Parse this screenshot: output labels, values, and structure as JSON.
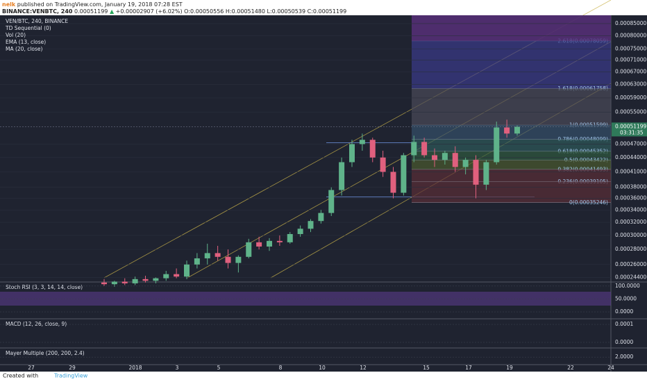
{
  "header": {
    "author": "nelk",
    "published": "published on TradingView.com, January 19, 2018 07:28 EST",
    "symbol": "BINANCE:VENBTC, 240",
    "last": "0.00051199",
    "change": "+0.00002907 (+6.02%)",
    "ohlc": [
      "O:0.00050556",
      "H:0.00051480",
      "L:0.00050539",
      "C:0.00051199"
    ]
  },
  "legend": [
    "VEN/BTC, 240, BINANCE",
    "TD Sequential (0)",
    "Vol (20)",
    "EMA (13, close)",
    "MA (20, close)"
  ],
  "chart_data": {
    "type": "candlestick",
    "log_scale": true,
    "up_color": "#5fb38a",
    "down_color": "#e0607e",
    "ylim": [
      0.0002394,
      0.0008855
    ],
    "yticks": [
      {
        "value": 0.00085,
        "label": "0.00085000"
      },
      {
        "value": 0.0008,
        "label": "0.00080000"
      },
      {
        "value": 0.00075,
        "label": "0.00075000"
      },
      {
        "value": 0.00071,
        "label": "0.00071000"
      },
      {
        "value": 0.00067,
        "label": "0.00067000"
      },
      {
        "value": 0.00063,
        "label": "0.00063000"
      },
      {
        "value": 0.00059,
        "label": "0.00059000"
      },
      {
        "value": 0.00055,
        "label": "0.00055000"
      },
      {
        "value": 0.00047,
        "label": "0.00047000"
      },
      {
        "value": 0.00044,
        "label": "0.00044000"
      },
      {
        "value": 0.00041,
        "label": "0.00041000"
      },
      {
        "value": 0.00038,
        "label": "0.00038000"
      },
      {
        "value": 0.00036,
        "label": "0.00036000"
      },
      {
        "value": 0.00034,
        "label": "0.00034000"
      },
      {
        "value": 0.00032,
        "label": "0.00032000"
      },
      {
        "value": 0.0003,
        "label": "0.00030000"
      },
      {
        "value": 0.00028,
        "label": "0.00028000"
      },
      {
        "value": 0.00026,
        "label": "0.00026000"
      },
      {
        "value": 0.000244,
        "label": "0.00024400"
      }
    ],
    "current": {
      "value": 0.00051199,
      "label": "0.00051199"
    },
    "countdown": "03:31:35",
    "candles": [
      [
        0.000238,
        0.000242,
        0.000234,
        0.000236
      ],
      [
        0.000236,
        0.00024,
        0.000233,
        0.000239
      ],
      [
        0.000239,
        0.000243,
        0.000235,
        0.000237
      ],
      [
        0.000237,
        0.000245,
        0.000235,
        0.000242
      ],
      [
        0.000242,
        0.000246,
        0.000238,
        0.00024
      ],
      [
        0.00024,
        0.000244,
        0.000237,
        0.000243
      ],
      [
        0.000243,
        0.000252,
        0.00024,
        0.000248
      ],
      [
        0.000248,
        0.000255,
        0.000243,
        0.000245
      ],
      [
        0.000245,
        0.000265,
        0.000242,
        0.00026
      ],
      [
        0.00026,
        0.000275,
        0.000255,
        0.000268
      ],
      [
        0.000268,
        0.000288,
        0.00026,
        0.000275
      ],
      [
        0.000275,
        0.000285,
        0.000265,
        0.00027
      ],
      [
        0.00027,
        0.00028,
        0.000255,
        0.000262
      ],
      [
        0.000262,
        0.000272,
        0.00025,
        0.00027
      ],
      [
        0.00027,
        0.000295,
        0.000268,
        0.00029
      ],
      [
        0.00029,
        0.000298,
        0.00028,
        0.000284
      ],
      [
        0.000284,
        0.000296,
        0.000278,
        0.000292
      ],
      [
        0.000292,
        0.0003,
        0.000285,
        0.00029
      ],
      [
        0.00029,
        0.000305,
        0.000288,
        0.000302
      ],
      [
        0.000302,
        0.000315,
        0.000298,
        0.00031
      ],
      [
        0.00031,
        0.000325,
        0.000305,
        0.000322
      ],
      [
        0.000322,
        0.00034,
        0.000318,
        0.000335
      ],
      [
        0.000335,
        0.00038,
        0.00033,
        0.000375
      ],
      [
        0.000375,
        0.00044,
        0.000365,
        0.00043
      ],
      [
        0.00043,
        0.00048,
        0.00042,
        0.00047
      ],
      [
        0.00047,
        0.000495,
        0.000455,
        0.00048
      ],
      [
        0.00048,
        0.000485,
        0.00043,
        0.00044
      ],
      [
        0.00044,
        0.000455,
        0.0004,
        0.00041
      ],
      [
        0.00041,
        0.00042,
        0.00036,
        0.00037
      ],
      [
        0.00037,
        0.00045,
        0.000365,
        0.000445
      ],
      [
        0.000445,
        0.00049,
        0.00043,
        0.000475
      ],
      [
        0.000475,
        0.000485,
        0.00044,
        0.000445
      ],
      [
        0.000445,
        0.00046,
        0.00042,
        0.000435
      ],
      [
        0.000435,
        0.000455,
        0.000425,
        0.00045
      ],
      [
        0.00045,
        0.000465,
        0.00041,
        0.00042
      ],
      [
        0.00042,
        0.00044,
        0.000405,
        0.000435
      ],
      [
        0.000435,
        0.000445,
        0.00036,
        0.000385
      ],
      [
        0.000385,
        0.000435,
        0.000375,
        0.00043
      ],
      [
        0.00043,
        0.000525,
        0.000425,
        0.00051
      ],
      [
        0.00051,
        0.00053,
        0.000485,
        0.000495
      ],
      [
        0.000495,
        0.000515,
        0.00049,
        0.000512
      ]
    ],
    "fib": [
      {
        "value": 0.00078059,
        "label": "2.618(0.00078059)",
        "color": "#7a2e3c"
      },
      {
        "value": 0.00061758,
        "label": "1.618(0.00061758)",
        "color": "#3a3a8a"
      },
      {
        "value": 0.00051599,
        "label": "1(0.00051599)",
        "color": "#4a4a58"
      },
      {
        "value": 0.00048099,
        "label": "0.786(0.00048099)",
        "color": "#34506a"
      },
      {
        "value": 0.00045352,
        "label": "0.618(0.00045352)",
        "color": "#2e5a5a"
      },
      {
        "value": 0.00043422,
        "label": "0.5(0.00043422)",
        "color": "#2f5a3e"
      },
      {
        "value": 0.00041493,
        "label": "0.382(0.00041493)",
        "color": "#4a5a2e"
      },
      {
        "value": 0.00039105,
        "label": "0.236(0.00039105)",
        "color": "#5a2e36"
      },
      {
        "value": 0.00035246,
        "label": "0(0.00035246)",
        "color": "#5a2e36"
      }
    ]
  },
  "time_axis": [
    "27",
    "29",
    "2018",
    "3",
    "5",
    "8",
    "10",
    "12",
    "15",
    "17",
    "19",
    "22",
    "24"
  ],
  "stoch": {
    "title": "Stoch RSI (3, 3, 14, 14, close)",
    "ylim": [
      -24,
      113
    ],
    "yticks": [
      {
        "value": 100,
        "label": "100.0000"
      },
      {
        "value": 50,
        "label": "50.0000"
      },
      {
        "value": 0,
        "label": "0.0000"
      }
    ]
  },
  "macd": {
    "title": "MACD (12, 26, close, 9)",
    "ylim": [
      -2.7e-05,
      0.000127
    ],
    "yticks": [
      {
        "value": 0.0001,
        "label": "0.0001"
      },
      {
        "value": 0,
        "label": "0.0000"
      }
    ]
  },
  "mayer": {
    "title": "Mayer Multiple (200, 200, 2.4)",
    "ylim": [
      1.6,
      2.5
    ],
    "yticks": [
      {
        "value": 2,
        "label": "2.0000"
      }
    ]
  },
  "footer": {
    "created": "Created with",
    "brand": "TradingView"
  }
}
